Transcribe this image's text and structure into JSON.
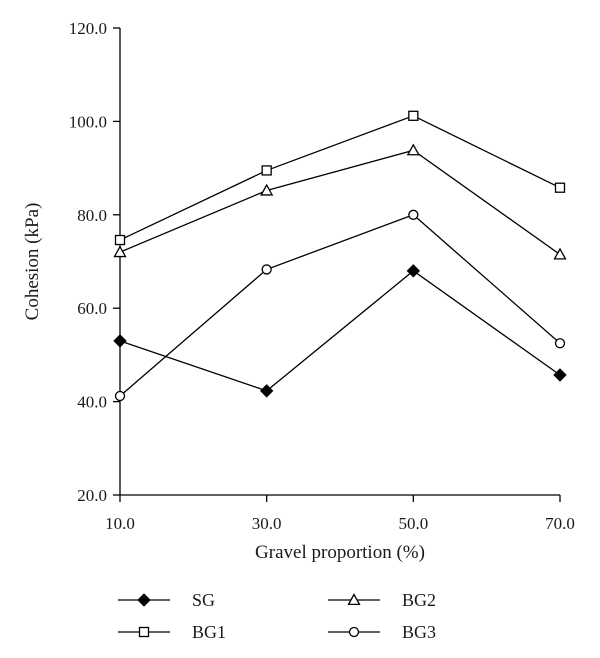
{
  "chart_data": {
    "type": "line",
    "xlabel": "Gravel proportion (%)",
    "ylabel": "Cohesion (kPa)",
    "x": [
      10,
      30,
      50,
      70
    ],
    "x_tick_labels": [
      "10.0",
      "30.0",
      "50.0",
      "70.0"
    ],
    "ylim": [
      20,
      120
    ],
    "y_ticks": [
      20,
      40,
      60,
      80,
      100,
      120
    ],
    "y_tick_labels": [
      "20.0",
      "40.0",
      "60.0",
      "80.0",
      "100.0",
      "120.0"
    ],
    "grid": false,
    "legend_position": "bottom",
    "series": [
      {
        "name": "SG",
        "marker": "diamond-filled",
        "values": [
          53.0,
          42.3,
          68.0,
          45.7
        ]
      },
      {
        "name": "BG1",
        "marker": "square-open",
        "values": [
          74.6,
          89.5,
          101.2,
          85.8
        ]
      },
      {
        "name": "BG2",
        "marker": "triangle-open",
        "values": [
          72.0,
          85.2,
          93.8,
          71.5
        ]
      },
      {
        "name": "BG3",
        "marker": "circle-open",
        "values": [
          41.2,
          68.3,
          80.0,
          52.5
        ]
      }
    ],
    "line_color": "#000000"
  }
}
